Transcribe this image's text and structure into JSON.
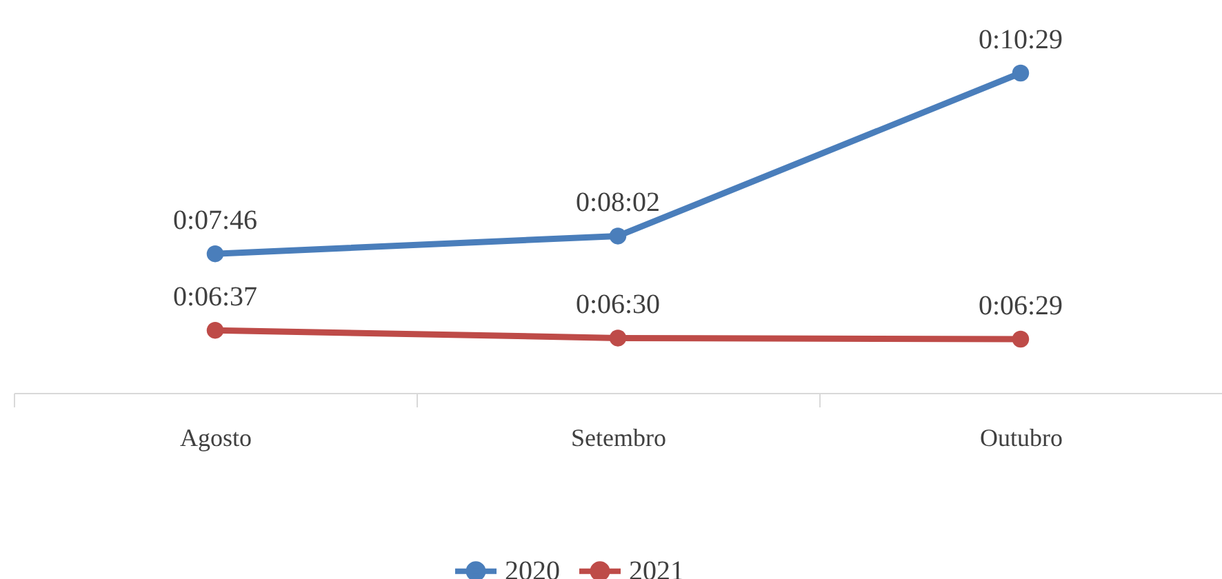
{
  "chart_data": {
    "type": "line",
    "categories": [
      "Agosto",
      "Setembro",
      "Outubro"
    ],
    "series": [
      {
        "name": "2020",
        "color": "#4a7ebb",
        "values": [
          466,
          482,
          629
        ],
        "value_labels": [
          "0:07:46",
          "0:08:02",
          "0:10:29"
        ]
      },
      {
        "name": "2021",
        "color": "#be4b48",
        "values": [
          397,
          390,
          389
        ],
        "value_labels": [
          "0:06:37",
          "0:06:30",
          "0:06:29"
        ]
      }
    ],
    "tick_labels": "x",
    "grid": false,
    "legend": "bottom",
    "marker": "circle",
    "line_style": "solid"
  }
}
